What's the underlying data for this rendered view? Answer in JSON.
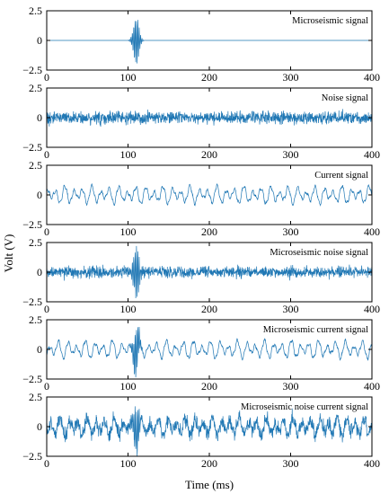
{
  "chart_data": {
    "type": "line",
    "xlabel": "Time (ms)",
    "ylabel": "Volt (V)",
    "xlim": [
      0,
      400
    ],
    "ylim": [
      -2.5,
      2.5
    ],
    "xticks": [
      0,
      100,
      200,
      300,
      400
    ],
    "yticks": [
      -2.5,
      0,
      2.5
    ],
    "ytick_labels": [
      "−2.5",
      "0",
      "2.5"
    ],
    "line_color": "#1f77b4",
    "grid": false,
    "panels": [
      {
        "title": "Microseismic signal",
        "series": [
          {
            "kind": "burst",
            "center": 110,
            "peak": 2.3,
            "floor": 0.0,
            "seed": 1
          }
        ]
      },
      {
        "title": "Noise signal",
        "series": [
          {
            "kind": "noise",
            "amplitude": 0.8,
            "seed": 2
          }
        ]
      },
      {
        "title": "Current signal",
        "series": [
          {
            "kind": "current",
            "amplitude": 0.9,
            "seed": 3
          }
        ]
      },
      {
        "title": "Microseismic noise signal",
        "series": [
          {
            "kind": "burst+noise",
            "center": 110,
            "peak": 2.4,
            "amplitude": 0.75,
            "seed": 4
          }
        ]
      },
      {
        "title": "Microseismic current signal",
        "series": [
          {
            "kind": "burst+current",
            "center": 110,
            "peak": 2.3,
            "amplitude": 0.9,
            "seed": 5
          }
        ]
      },
      {
        "title": "Microseismic noise current signal",
        "series": [
          {
            "kind": "burst+noise+current",
            "center": 110,
            "peak": 2.4,
            "amplitude": 0.9,
            "seed": 6
          }
        ]
      }
    ]
  }
}
